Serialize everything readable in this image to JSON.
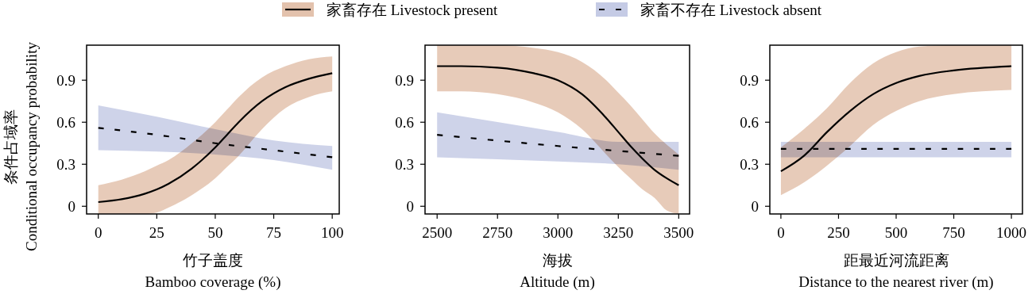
{
  "chart_data": [
    {
      "type": "line",
      "xlabel": "竹子盖度\nBamboo coverage (%)",
      "ylabel": "条件占域率\nConditional occupancy probability",
      "xlim": [
        -5,
        103
      ],
      "ylim": [
        -0.055,
        1.15
      ],
      "xticks": [
        0,
        25,
        50,
        75,
        100
      ],
      "yticks": [
        0,
        0.3,
        0.6,
        0.9
      ],
      "legend": "top",
      "series": [
        {
          "name": "家畜存在 Livestock present",
          "color": "#000000",
          "line_style": "solid",
          "x": [
            0,
            10,
            20,
            25,
            30,
            40,
            50,
            55,
            60,
            70,
            80,
            90,
            100
          ],
          "values": [
            0.03,
            0.05,
            0.09,
            0.12,
            0.16,
            0.27,
            0.42,
            0.51,
            0.6,
            0.75,
            0.85,
            0.91,
            0.95
          ],
          "lower": [
            -0.055,
            -0.055,
            -0.055,
            -0.045,
            -0.01,
            0.08,
            0.2,
            0.28,
            0.36,
            0.55,
            0.7,
            0.78,
            0.82
          ],
          "upper": [
            0.15,
            0.19,
            0.25,
            0.29,
            0.33,
            0.45,
            0.6,
            0.69,
            0.78,
            0.92,
            1.0,
            1.05,
            1.07
          ]
        },
        {
          "name": "家畜不存在 Livestock absent",
          "color": "#000000",
          "line_style": "dashed",
          "x": [
            0,
            25,
            50,
            75,
            100
          ],
          "values": [
            0.56,
            0.51,
            0.45,
            0.4,
            0.35
          ],
          "lower": [
            0.4,
            0.39,
            0.37,
            0.33,
            0.26
          ],
          "upper": [
            0.72,
            0.64,
            0.55,
            0.47,
            0.43
          ]
        }
      ]
    },
    {
      "type": "line",
      "xlabel": "海拔\nAltitude (m)",
      "xlim": [
        2450,
        3545
      ],
      "ylim": [
        -0.055,
        1.15
      ],
      "xticks": [
        2500,
        2750,
        3000,
        3250,
        3500
      ],
      "yticks": [
        0,
        0.3,
        0.6,
        0.9
      ],
      "series": [
        {
          "color": "#000000",
          "line_style": "solid",
          "x": [
            2500,
            2600,
            2750,
            2900,
            3000,
            3100,
            3200,
            3250,
            3300,
            3350,
            3400,
            3450,
            3500
          ],
          "values": [
            1.0,
            1.0,
            0.99,
            0.95,
            0.9,
            0.8,
            0.63,
            0.53,
            0.43,
            0.34,
            0.26,
            0.2,
            0.15
          ],
          "lower": [
            0.82,
            0.82,
            0.8,
            0.74,
            0.67,
            0.55,
            0.37,
            0.28,
            0.2,
            0.12,
            0.06,
            -0.03,
            -0.055
          ],
          "upper": [
            1.15,
            1.15,
            1.15,
            1.13,
            1.1,
            1.03,
            0.9,
            0.81,
            0.72,
            0.62,
            0.52,
            0.44,
            0.37
          ]
        },
        {
          "color": "#000000",
          "line_style": "dashed",
          "x": [
            2500,
            3000,
            3250,
            3500
          ],
          "values": [
            0.51,
            0.43,
            0.395,
            0.36
          ],
          "lower": [
            0.35,
            0.32,
            0.3,
            0.26
          ],
          "upper": [
            0.67,
            0.53,
            0.46,
            0.46
          ]
        }
      ]
    },
    {
      "type": "line",
      "xlabel": "距最近河流距离\nDistance to the nearest river (m)",
      "xlim": [
        -48,
        1048
      ],
      "ylim": [
        -0.055,
        1.15
      ],
      "xticks": [
        0,
        250,
        500,
        750,
        1000
      ],
      "yticks": [
        0,
        0.3,
        0.6,
        0.9
      ],
      "series": [
        {
          "color": "#000000",
          "line_style": "solid",
          "x": [
            0,
            100,
            200,
            300,
            400,
            500,
            600,
            750,
            1000
          ],
          "values": [
            0.25,
            0.36,
            0.53,
            0.68,
            0.8,
            0.88,
            0.93,
            0.97,
            1.0
          ],
          "lower": [
            0.08,
            0.17,
            0.29,
            0.43,
            0.58,
            0.68,
            0.75,
            0.8,
            0.83
          ],
          "upper": [
            0.42,
            0.55,
            0.7,
            0.88,
            1.02,
            1.1,
            1.14,
            1.15,
            1.15
          ]
        },
        {
          "color": "#000000",
          "line_style": "dashed",
          "x": [
            0,
            1000
          ],
          "values": [
            0.41,
            0.41
          ],
          "lower": [
            0.35,
            0.35
          ],
          "upper": [
            0.46,
            0.46
          ]
        }
      ]
    }
  ]
}
